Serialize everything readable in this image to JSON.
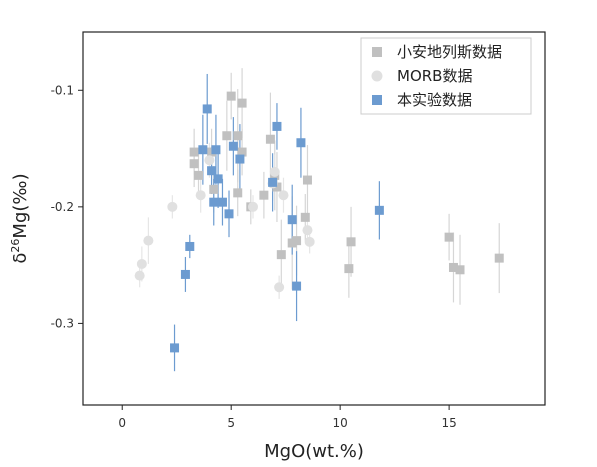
{
  "chart_data": {
    "type": "scatter",
    "xlabel": "MgO(wt.%)",
    "ylabel": "δ²⁶Mg(‰)",
    "ylabel_base": "δ",
    "ylabel_sup": "26",
    "ylabel_rest": "Mg(‰)",
    "xlim": [
      -1.8,
      19.4
    ],
    "ylim": [
      -0.37,
      -0.05
    ],
    "xticks": [
      0,
      5,
      10,
      15
    ],
    "xtick_labels": [
      "0",
      "5",
      "10",
      "15"
    ],
    "yticks": [
      -0.1,
      -0.2,
      -0.3
    ],
    "ytick_labels": [
      "-0.1",
      "-0.2",
      "-0.3"
    ],
    "grid": false,
    "legend_position": "top-right",
    "series": [
      {
        "name": "小安地列斯数据",
        "marker": "square",
        "color": "#c0c0c0",
        "errcolor": "#d6d6d6",
        "points": [
          {
            "x": 3.3,
            "y": -0.153,
            "e": 0.02
          },
          {
            "x": 3.3,
            "y": -0.163,
            "e": 0.02
          },
          {
            "x": 3.5,
            "y": -0.173,
            "e": 0.02
          },
          {
            "x": 4.1,
            "y": -0.153,
            "e": 0.02
          },
          {
            "x": 4.2,
            "y": -0.185,
            "e": 0.02
          },
          {
            "x": 4.8,
            "y": -0.139,
            "e": 0.03
          },
          {
            "x": 5.0,
            "y": -0.105,
            "e": 0.02
          },
          {
            "x": 5.3,
            "y": -0.139,
            "e": 0.04
          },
          {
            "x": 5.5,
            "y": -0.111,
            "e": 0.03
          },
          {
            "x": 5.3,
            "y": -0.188,
            "e": 0.02
          },
          {
            "x": 5.5,
            "y": -0.153,
            "e": 0.02
          },
          {
            "x": 5.9,
            "y": -0.2,
            "e": 0.015
          },
          {
            "x": 6.5,
            "y": -0.19,
            "e": 0.02
          },
          {
            "x": 6.8,
            "y": -0.142,
            "e": 0.04
          },
          {
            "x": 7.0,
            "y": -0.173,
            "e": 0.03
          },
          {
            "x": 7.1,
            "y": -0.183,
            "e": 0.03
          },
          {
            "x": 7.3,
            "y": -0.241,
            "e": 0.03
          },
          {
            "x": 7.8,
            "y": -0.231,
            "e": 0.04
          },
          {
            "x": 8.0,
            "y": -0.229,
            "e": 0.03
          },
          {
            "x": 8.4,
            "y": -0.209,
            "e": 0.02
          },
          {
            "x": 8.5,
            "y": -0.177,
            "e": 0.03
          },
          {
            "x": 10.4,
            "y": -0.253,
            "e": 0.025
          },
          {
            "x": 10.5,
            "y": -0.23,
            "e": 0.03
          },
          {
            "x": 15.0,
            "y": -0.226,
            "e": 0.02
          },
          {
            "x": 15.2,
            "y": -0.252,
            "e": 0.03
          },
          {
            "x": 15.5,
            "y": -0.254,
            "e": 0.03
          },
          {
            "x": 17.3,
            "y": -0.244,
            "e": 0.03
          }
        ]
      },
      {
        "name": "MORB数据",
        "marker": "circle",
        "color": "#e0e0e0",
        "errcolor": "#e6e6e6",
        "points": [
          {
            "x": 0.8,
            "y": -0.259,
            "e": 0.01
          },
          {
            "x": 0.9,
            "y": -0.249,
            "e": 0.015
          },
          {
            "x": 1.2,
            "y": -0.229,
            "e": 0.02
          },
          {
            "x": 2.3,
            "y": -0.2,
            "e": 0.01
          },
          {
            "x": 3.6,
            "y": -0.19,
            "e": 0.015
          },
          {
            "x": 4.0,
            "y": -0.16,
            "e": 0.015
          },
          {
            "x": 6.0,
            "y": -0.2,
            "e": 0.01
          },
          {
            "x": 6.9,
            "y": -0.18,
            "e": 0.015
          },
          {
            "x": 7.0,
            "y": -0.17,
            "e": 0.015
          },
          {
            "x": 7.2,
            "y": -0.269,
            "e": 0.01
          },
          {
            "x": 7.4,
            "y": -0.19,
            "e": 0.015
          },
          {
            "x": 8.5,
            "y": -0.22,
            "e": 0.01
          },
          {
            "x": 8.6,
            "y": -0.23,
            "e": 0.01
          }
        ]
      },
      {
        "name": "本实验数据",
        "marker": "square",
        "color": "#6c9bd0",
        "errcolor": "#6c9bd0",
        "points": [
          {
            "x": 2.4,
            "y": -0.321,
            "e": 0.02
          },
          {
            "x": 2.9,
            "y": -0.258,
            "e": 0.015
          },
          {
            "x": 3.1,
            "y": -0.234,
            "e": 0.01
          },
          {
            "x": 3.7,
            "y": -0.151,
            "e": 0.03
          },
          {
            "x": 3.9,
            "y": -0.116,
            "e": 0.03
          },
          {
            "x": 4.1,
            "y": -0.169,
            "e": 0.02
          },
          {
            "x": 4.2,
            "y": -0.196,
            "e": 0.02
          },
          {
            "x": 4.3,
            "y": -0.151,
            "e": 0.03
          },
          {
            "x": 4.4,
            "y": -0.176,
            "e": 0.025
          },
          {
            "x": 4.6,
            "y": -0.196,
            "e": 0.02
          },
          {
            "x": 4.9,
            "y": -0.206,
            "e": 0.02
          },
          {
            "x": 5.1,
            "y": -0.148,
            "e": 0.025
          },
          {
            "x": 5.4,
            "y": -0.159,
            "e": 0.03
          },
          {
            "x": 6.9,
            "y": -0.179,
            "e": 0.025
          },
          {
            "x": 7.1,
            "y": -0.131,
            "e": 0.02
          },
          {
            "x": 7.8,
            "y": -0.211,
            "e": 0.03
          },
          {
            "x": 8.0,
            "y": -0.268,
            "e": 0.03
          },
          {
            "x": 8.2,
            "y": -0.145,
            "e": 0.03
          },
          {
            "x": 11.8,
            "y": -0.203,
            "e": 0.025
          }
        ]
      }
    ]
  }
}
